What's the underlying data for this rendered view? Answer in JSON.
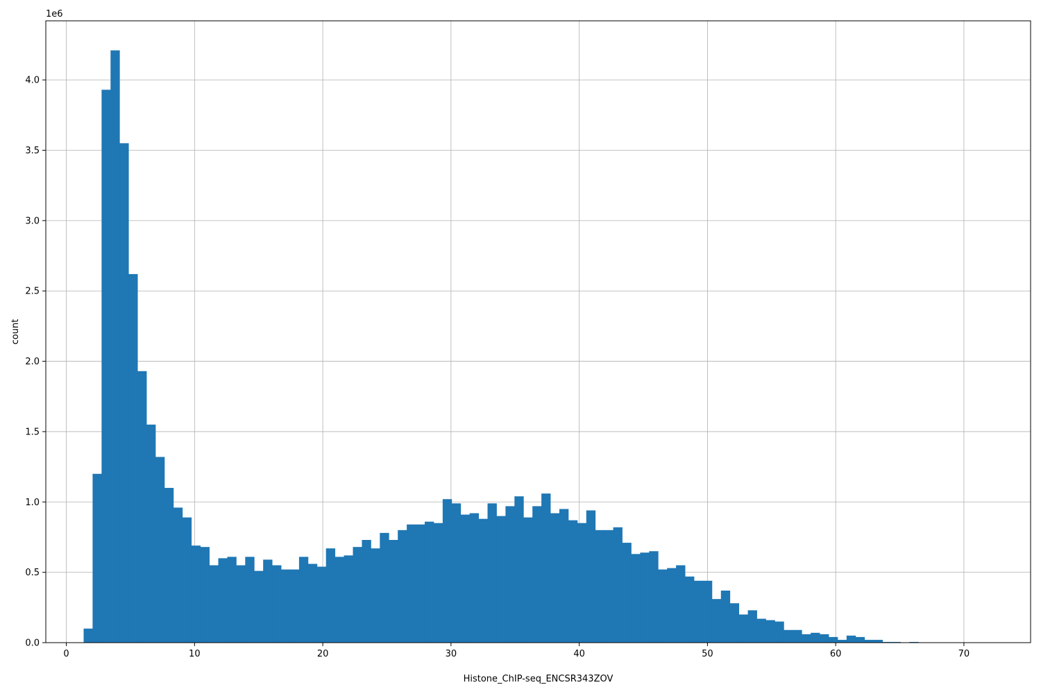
{
  "chart_data": {
    "type": "bar",
    "subtype": "histogram",
    "title": "",
    "xlabel": "Histone_ChIP-seq_ENCSR343ZOV",
    "ylabel": "count",
    "y_offset_label": "1e6",
    "y_scale_factor": 1000000,
    "xlim": [
      -1.6,
      75.2
    ],
    "ylim": [
      0,
      4.42
    ],
    "grid": true,
    "legend": "none",
    "bar_color": "#1f77b4",
    "x_ticks": [
      0,
      10,
      20,
      30,
      40,
      50,
      60,
      70
    ],
    "x_tick_labels": [
      "0",
      "10",
      "20",
      "30",
      "40",
      "50",
      "60",
      "70"
    ],
    "y_ticks": [
      0.0,
      0.5,
      1.0,
      1.5,
      2.0,
      2.5,
      3.0,
      3.5,
      4.0
    ],
    "y_tick_labels": [
      "0.0",
      "0.5",
      "1.0",
      "1.5",
      "2.0",
      "2.5",
      "3.0",
      "3.5",
      "4.0"
    ],
    "bin_start": 1.35,
    "bin_width": 0.7,
    "values": [
      0.1,
      1.2,
      3.93,
      4.21,
      3.55,
      2.62,
      1.93,
      1.55,
      1.32,
      1.1,
      0.96,
      0.89,
      0.69,
      0.68,
      0.55,
      0.6,
      0.61,
      0.55,
      0.61,
      0.51,
      0.59,
      0.55,
      0.52,
      0.52,
      0.61,
      0.56,
      0.54,
      0.67,
      0.61,
      0.62,
      0.68,
      0.73,
      0.67,
      0.78,
      0.73,
      0.8,
      0.84,
      0.84,
      0.86,
      0.85,
      1.02,
      0.99,
      0.91,
      0.92,
      0.88,
      0.99,
      0.9,
      0.97,
      1.04,
      0.89,
      0.97,
      1.06,
      0.92,
      0.95,
      0.87,
      0.85,
      0.94,
      0.8,
      0.8,
      0.82,
      0.71,
      0.63,
      0.64,
      0.65,
      0.52,
      0.53,
      0.55,
      0.47,
      0.44,
      0.44,
      0.31,
      0.37,
      0.28,
      0.2,
      0.23,
      0.17,
      0.16,
      0.15,
      0.09,
      0.09,
      0.06,
      0.07,
      0.06,
      0.04,
      0.02,
      0.05,
      0.04,
      0.02,
      0.02,
      0.005,
      0.005,
      0.002,
      0.005,
      0.002
    ]
  }
}
